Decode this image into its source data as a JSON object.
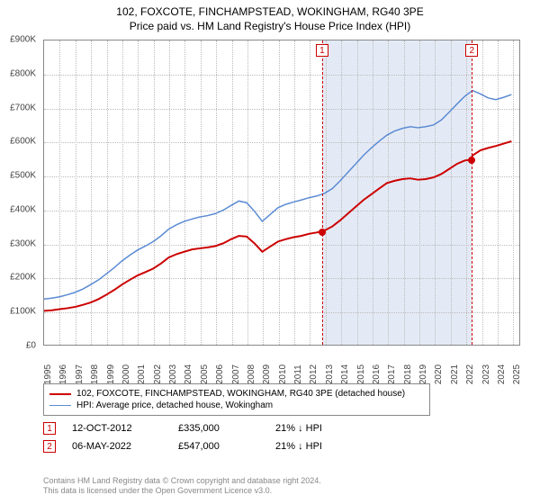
{
  "title": "102, FOXCOTE, FINCHAMPSTEAD, WOKINGHAM, RG40 3PE",
  "subtitle": "Price paid vs. HM Land Registry's House Price Index (HPI)",
  "chart": {
    "type": "line",
    "background_color": "#ffffff",
    "grid_color": "#bbbbbb",
    "border_color": "#888888",
    "x_range": [
      1995,
      2025.5
    ],
    "y_range": [
      0,
      900000
    ],
    "y_ticks": [
      0,
      100000,
      200000,
      300000,
      400000,
      500000,
      600000,
      700000,
      800000,
      900000
    ],
    "y_tick_labels": [
      "£0",
      "£100K",
      "£200K",
      "£300K",
      "£400K",
      "£500K",
      "£600K",
      "£700K",
      "£800K",
      "£900K"
    ],
    "x_ticks": [
      1995,
      1996,
      1997,
      1998,
      1999,
      2000,
      2001,
      2002,
      2003,
      2004,
      2005,
      2006,
      2007,
      2008,
      2009,
      2010,
      2011,
      2012,
      2013,
      2014,
      2015,
      2016,
      2017,
      2018,
      2019,
      2020,
      2021,
      2022,
      2023,
      2024,
      2025
    ],
    "x_tick_labels": [
      "1995",
      "1996",
      "1997",
      "1998",
      "1999",
      "2000",
      "2001",
      "2002",
      "2003",
      "2004",
      "2005",
      "2006",
      "2007",
      "2008",
      "2009",
      "2010",
      "2011",
      "2012",
      "2013",
      "2014",
      "2015",
      "2016",
      "2017",
      "2018",
      "2019",
      "2020",
      "2021",
      "2022",
      "2023",
      "2024",
      "2025"
    ],
    "shaded_region": {
      "x_start": 2012.78,
      "x_end": 2022.35,
      "color": "#cdd9ed",
      "opacity": 0.55
    },
    "series": [
      {
        "name": "price_paid",
        "label": "102, FOXCOTE, FINCHAMPSTEAD, WOKINGHAM, RG40 3PE (detached house)",
        "color": "#cc0000",
        "line_width": 2,
        "data": [
          [
            1995,
            100000
          ],
          [
            1995.5,
            102000
          ],
          [
            1996,
            105000
          ],
          [
            1996.5,
            108000
          ],
          [
            1997,
            112000
          ],
          [
            1997.5,
            118000
          ],
          [
            1998,
            125000
          ],
          [
            1998.5,
            135000
          ],
          [
            1999,
            148000
          ],
          [
            1999.5,
            162000
          ],
          [
            2000,
            178000
          ],
          [
            2000.5,
            192000
          ],
          [
            2001,
            205000
          ],
          [
            2001.5,
            215000
          ],
          [
            2002,
            225000
          ],
          [
            2002.5,
            240000
          ],
          [
            2003,
            258000
          ],
          [
            2003.5,
            268000
          ],
          [
            2004,
            275000
          ],
          [
            2004.5,
            282000
          ],
          [
            2005,
            285000
          ],
          [
            2005.5,
            288000
          ],
          [
            2006,
            292000
          ],
          [
            2006.5,
            300000
          ],
          [
            2007,
            312000
          ],
          [
            2007.5,
            322000
          ],
          [
            2008,
            320000
          ],
          [
            2008.5,
            300000
          ],
          [
            2009,
            275000
          ],
          [
            2009.5,
            290000
          ],
          [
            2010,
            305000
          ],
          [
            2010.5,
            312000
          ],
          [
            2011,
            318000
          ],
          [
            2011.5,
            322000
          ],
          [
            2012,
            328000
          ],
          [
            2012.5,
            332000
          ],
          [
            2012.78,
            335000
          ],
          [
            2013,
            338000
          ],
          [
            2013.5,
            350000
          ],
          [
            2014,
            368000
          ],
          [
            2014.5,
            388000
          ],
          [
            2015,
            408000
          ],
          [
            2015.5,
            428000
          ],
          [
            2016,
            445000
          ],
          [
            2016.5,
            462000
          ],
          [
            2017,
            478000
          ],
          [
            2017.5,
            485000
          ],
          [
            2018,
            490000
          ],
          [
            2018.5,
            492000
          ],
          [
            2019,
            488000
          ],
          [
            2019.5,
            490000
          ],
          [
            2020,
            495000
          ],
          [
            2020.5,
            505000
          ],
          [
            2021,
            520000
          ],
          [
            2021.5,
            535000
          ],
          [
            2022,
            545000
          ],
          [
            2022.35,
            547000
          ],
          [
            2022.5,
            560000
          ],
          [
            2023,
            575000
          ],
          [
            2023.5,
            582000
          ],
          [
            2024,
            588000
          ],
          [
            2024.5,
            595000
          ],
          [
            2025,
            602000
          ]
        ]
      },
      {
        "name": "hpi",
        "label": "HPI: Average price, detached house, Wokingham",
        "color": "#5b8bd4",
        "line_width": 1.5,
        "data": [
          [
            1995,
            135000
          ],
          [
            1995.5,
            138000
          ],
          [
            1996,
            142000
          ],
          [
            1996.5,
            148000
          ],
          [
            1997,
            155000
          ],
          [
            1997.5,
            165000
          ],
          [
            1998,
            178000
          ],
          [
            1998.5,
            192000
          ],
          [
            1999,
            210000
          ],
          [
            1999.5,
            228000
          ],
          [
            2000,
            248000
          ],
          [
            2000.5,
            265000
          ],
          [
            2001,
            280000
          ],
          [
            2001.5,
            292000
          ],
          [
            2002,
            305000
          ],
          [
            2002.5,
            322000
          ],
          [
            2003,
            342000
          ],
          [
            2003.5,
            355000
          ],
          [
            2004,
            365000
          ],
          [
            2004.5,
            372000
          ],
          [
            2005,
            378000
          ],
          [
            2005.5,
            382000
          ],
          [
            2006,
            388000
          ],
          [
            2006.5,
            398000
          ],
          [
            2007,
            412000
          ],
          [
            2007.5,
            425000
          ],
          [
            2008,
            420000
          ],
          [
            2008.5,
            395000
          ],
          [
            2009,
            365000
          ],
          [
            2009.5,
            385000
          ],
          [
            2010,
            405000
          ],
          [
            2010.5,
            415000
          ],
          [
            2011,
            422000
          ],
          [
            2011.5,
            428000
          ],
          [
            2012,
            435000
          ],
          [
            2012.5,
            440000
          ],
          [
            2013,
            448000
          ],
          [
            2013.5,
            462000
          ],
          [
            2014,
            485000
          ],
          [
            2014.5,
            510000
          ],
          [
            2015,
            535000
          ],
          [
            2015.5,
            560000
          ],
          [
            2016,
            582000
          ],
          [
            2016.5,
            602000
          ],
          [
            2017,
            620000
          ],
          [
            2017.5,
            632000
          ],
          [
            2018,
            640000
          ],
          [
            2018.5,
            645000
          ],
          [
            2019,
            642000
          ],
          [
            2019.5,
            645000
          ],
          [
            2020,
            650000
          ],
          [
            2020.5,
            665000
          ],
          [
            2021,
            688000
          ],
          [
            2021.5,
            712000
          ],
          [
            2022,
            735000
          ],
          [
            2022.5,
            752000
          ],
          [
            2023,
            742000
          ],
          [
            2023.5,
            730000
          ],
          [
            2024,
            725000
          ],
          [
            2024.5,
            732000
          ],
          [
            2025,
            740000
          ]
        ]
      }
    ],
    "markers": [
      {
        "id": "1",
        "x": 2012.78,
        "y": 335000,
        "box_top": true
      },
      {
        "id": "2",
        "x": 2022.35,
        "y": 547000,
        "box_top": true
      }
    ],
    "label_fontsize": 10,
    "title_fontsize": 12
  },
  "legend": {
    "border_color": "#888888",
    "items": [
      {
        "color": "#cc0000",
        "width": 2,
        "label": "102, FOXCOTE, FINCHAMPSTEAD, WOKINGHAM, RG40 3PE (detached house)"
      },
      {
        "color": "#5b8bd4",
        "width": 1.5,
        "label": "HPI: Average price, detached house, Wokingham"
      }
    ]
  },
  "transactions": [
    {
      "id": "1",
      "date": "12-OCT-2012",
      "price": "£335,000",
      "change": "21% ↓ HPI"
    },
    {
      "id": "2",
      "date": "06-MAY-2022",
      "price": "£547,000",
      "change": "21% ↓ HPI"
    }
  ],
  "footer_line1": "Contains HM Land Registry data © Crown copyright and database right 2024.",
  "footer_line2": "This data is licensed under the Open Government Licence v3.0."
}
